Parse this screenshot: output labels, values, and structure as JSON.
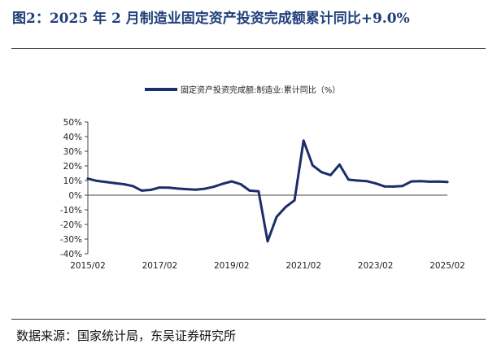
{
  "figure_title": "图2：2025 年 2 月制造业固定资产投资完成额累计同比+9.0%",
  "source": "数据来源：国家统计局，东吴证券研究所",
  "chart_data": {
    "type": "line",
    "title": "",
    "xlabel": "",
    "ylabel": "",
    "legend_position": "top",
    "line_color": "#1b2d6b",
    "series": [
      {
        "name": "固定资产投资完成额:制造业:累计同比（%）",
        "x": [
          "2015-02",
          "2015-05",
          "2015-08",
          "2015-11",
          "2016-02",
          "2016-05",
          "2016-08",
          "2016-11",
          "2017-02",
          "2017-05",
          "2017-08",
          "2017-11",
          "2018-02",
          "2018-05",
          "2018-08",
          "2018-11",
          "2019-02",
          "2019-05",
          "2019-08",
          "2019-11",
          "2020-02",
          "2020-05",
          "2020-08",
          "2020-11",
          "2021-02",
          "2021-05",
          "2021-08",
          "2021-11",
          "2022-02",
          "2022-05",
          "2022-08",
          "2022-11",
          "2023-02",
          "2023-05",
          "2023-08",
          "2023-11",
          "2024-02",
          "2024-05",
          "2024-08",
          "2024-11",
          "2025-02"
        ],
        "values": [
          11.3,
          9.8,
          9.0,
          8.2,
          7.5,
          6.2,
          3.1,
          3.6,
          5.2,
          5.1,
          4.5,
          4.1,
          3.8,
          4.4,
          5.7,
          7.8,
          9.4,
          7.5,
          3.1,
          2.6,
          -31.5,
          -14.8,
          -8.1,
          -3.5,
          37.3,
          20.4,
          15.7,
          13.7,
          20.9,
          10.6,
          10.0,
          9.6,
          8.1,
          6.0,
          5.9,
          6.3,
          9.4,
          9.6,
          9.2,
          9.3,
          9.0
        ]
      }
    ],
    "x_ticks": [
      "2015/02",
      "2017/02",
      "2019/02",
      "2021/02",
      "2023/02",
      "2025/02"
    ],
    "y_ticks": [
      "50%",
      "40%",
      "30%",
      "20%",
      "10%",
      "0%",
      "-10%",
      "-20%",
      "-30%",
      "-40%"
    ],
    "ylim": [
      -40,
      50
    ],
    "grid": false
  }
}
